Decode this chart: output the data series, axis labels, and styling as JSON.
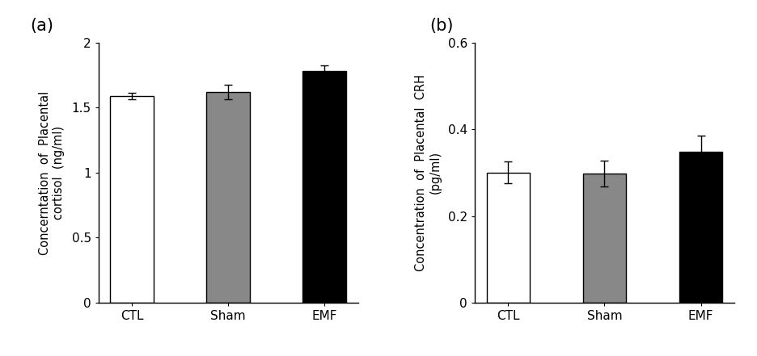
{
  "panel_a": {
    "label": "(a)",
    "categories": [
      "CTL",
      "Sham",
      "EMF"
    ],
    "values": [
      1.59,
      1.62,
      1.78
    ],
    "errors": [
      0.025,
      0.055,
      0.045
    ],
    "colors": [
      "white",
      "#888888",
      "black"
    ],
    "edgecolors": [
      "black",
      "black",
      "black"
    ],
    "ylabel_line1": "Concerntation  of  Placental",
    "ylabel_line2": "cortisol  (ng/ml)",
    "ylim": [
      0,
      2.0
    ],
    "yticks": [
      0,
      0.5,
      1,
      1.5,
      2
    ],
    "yticklabels": [
      "0",
      "0.5",
      "1",
      "1.5",
      "2"
    ]
  },
  "panel_b": {
    "label": "(b)",
    "categories": [
      "CTL",
      "Sham",
      "EMF"
    ],
    "values": [
      0.3,
      0.298,
      0.348
    ],
    "errors": [
      0.025,
      0.03,
      0.038
    ],
    "colors": [
      "white",
      "#888888",
      "black"
    ],
    "edgecolors": [
      "black",
      "black",
      "black"
    ],
    "ylabel_line1": "Concentration  of  Placental  CRH",
    "ylabel_line2": "(pg/ml)",
    "ylim": [
      0,
      0.6
    ],
    "yticks": [
      0,
      0.2,
      0.4,
      0.6
    ],
    "yticklabels": [
      "0",
      "0.2",
      "0.4",
      "0.6"
    ]
  },
  "bar_width": 0.45,
  "background_color": "#ffffff",
  "panel_label_fontsize": 15,
  "tick_fontsize": 11,
  "ylabel_fontsize": 10.5,
  "xtick_fontsize": 11
}
